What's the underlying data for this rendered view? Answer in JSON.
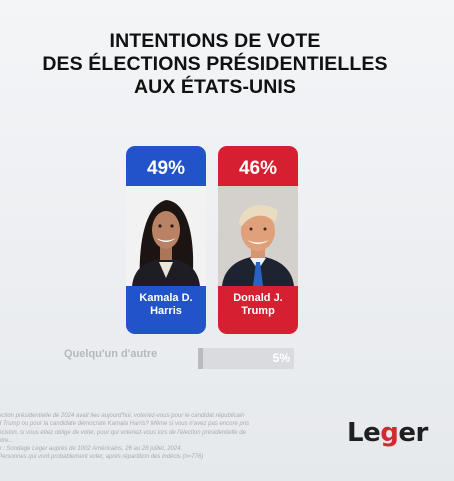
{
  "title_lines": [
    "INTENTIONS DE VOTE",
    "DES ÉLECTIONS PRÉSIDENTIELLES",
    "AUX ÉTATS-UNIS"
  ],
  "chart_data": {
    "type": "bar",
    "title": "INTENTIONS DE VOTE DES ÉLECTIONS PRÉSIDENTIELLES AUX ÉTATS-UNIS",
    "categories": [
      "Kamala D. Harris",
      "Donald J. Trump",
      "Quelqu'un d'autre"
    ],
    "values": [
      49,
      46,
      5
    ],
    "value_labels": [
      "49%",
      "46%",
      "5%"
    ],
    "colors": [
      "#2353c9",
      "#d61f30",
      "#b8bbc0"
    ]
  },
  "candidates": [
    {
      "pct": "49%",
      "name_line1": "Kamala D.",
      "name_line2": "Harris"
    },
    {
      "pct": "46%",
      "name_line1": "Donald J.",
      "name_line2": "Trump"
    }
  ],
  "other": {
    "label": "Quelqu'un d'autre",
    "pct": "5%",
    "value": 5
  },
  "footnote_lines": [
    "ection présidentielle de 2024 avait lieu aujourd'hui, voteriez-vous pour le candidat républicain",
    "d Trump ou pour la candidate démocrate Kamala Harris? Même si vous n'avez pas encore pris",
    "écision, si vous étiez obligé de voter, pour qui voteriez-vous lors de l'élection présidentielle de",
    "otre...",
    "e : Sondage Leger auprès de 1002 Américains, 26 au 28 juillet, 2024.",
    "Personnes qui vont probablement voter, après répartition des indécis (n=776)"
  ],
  "logo": {
    "part1": "Le",
    "part2": "g",
    "part3": "er"
  }
}
